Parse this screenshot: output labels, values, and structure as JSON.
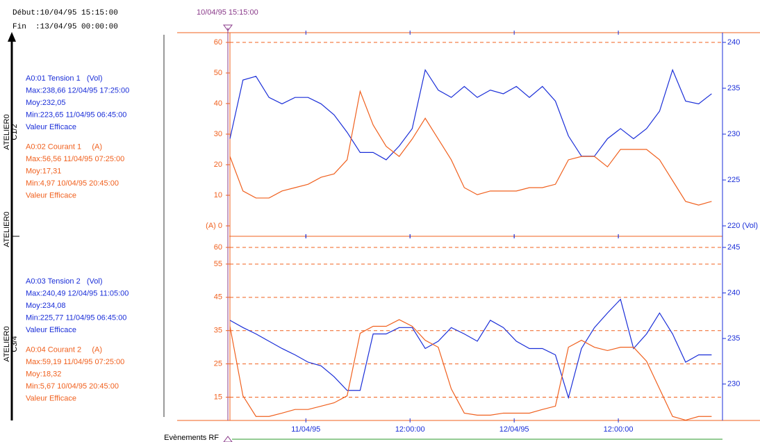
{
  "header": {
    "start": "Début:10/04/95 15:15:00",
    "end": "Fin  :13/04/95 00:00:00",
    "cursor": "10/04/95 15:15:00"
  },
  "groups": [
    {
      "label": "ATELIER0",
      "sublabel": "C1/2"
    },
    {
      "label": "ATELIER0"
    },
    {
      "label": "ATELIER0",
      "sublabel": "C3/4"
    }
  ],
  "footer": "Evènements RF",
  "chart_data": [
    {
      "type": "line",
      "x": [
        0,
        1.5,
        3,
        4.5,
        6,
        7.5,
        9,
        10.5,
        12,
        13.5,
        15,
        16.5,
        18,
        19.5,
        21,
        22.5,
        24,
        25.5,
        27,
        28.5,
        30,
        31.5,
        33,
        34.5,
        36,
        37.5,
        39,
        40.5,
        42,
        43.5,
        45,
        46.5,
        48,
        49.5,
        51,
        52.5,
        54,
        55.5
      ],
      "xlim": [
        0,
        56.75
      ],
      "xticks": [
        8.75,
        20.75,
        32.75,
        44.75
      ],
      "ylim": [
        0,
        60
      ],
      "yticks": [
        {
          "value": 0,
          "label": "(A) 0"
        },
        10,
        20,
        30,
        40,
        50,
        60
      ],
      "y2lim": [
        220,
        240
      ],
      "y2ticks": [
        {
          "value": 220,
          "label": "220 (Vol)"
        },
        225,
        230,
        235,
        240
      ],
      "hlines": [
        60
      ],
      "series": [
        {
          "name": "A0:01 Tension 1   (Vol)",
          "color": "#1a2ed8",
          "axis": "y2",
          "stats": [
            "Max:238,66 12/04/95 17:25:00",
            "Moy:232,05",
            "Min:223,65 11/04/95 06:45:00",
            "Valeur Efficace"
          ],
          "values": [
            229.5,
            235.9,
            236.3,
            234,
            233.3,
            234,
            234,
            233.3,
            232.1,
            230.2,
            228,
            228,
            227.2,
            228.7,
            230.6,
            237,
            234.8,
            234,
            235.2,
            234,
            234.8,
            234.4,
            235.2,
            234,
            235.2,
            233.6,
            229.8,
            227.6,
            227.6,
            229.5,
            230.6,
            229.5,
            230.6,
            232.5,
            237,
            233.6,
            233.3,
            234.4
          ]
        },
        {
          "name": "A0:02 Courant 1     (A)",
          "color": "#f0601e",
          "stats": [
            "Max:56,56 11/04/95 07:25:00",
            "Moy:17,31",
            "Min:4,97 10/04/95 20:45:00",
            "Valeur Efficace"
          ],
          "values": [
            22.7,
            11.4,
            9.1,
            9.1,
            11.4,
            12.5,
            13.6,
            15.9,
            17,
            21.6,
            44,
            33,
            26,
            22.7,
            28.4,
            35.2,
            28.4,
            21.6,
            12.5,
            10.2,
            11.4,
            11.4,
            11.4,
            12.5,
            12.5,
            13.6,
            21.6,
            22.7,
            22.7,
            19.3,
            25,
            25,
            25,
            21.6,
            14.8,
            8,
            6.8,
            8
          ]
        }
      ]
    },
    {
      "type": "line",
      "x": [
        0,
        1.5,
        3,
        4.5,
        6,
        7.5,
        9,
        10.5,
        12,
        13.5,
        15,
        16.5,
        18,
        19.5,
        21,
        22.5,
        24,
        25.5,
        27,
        28.5,
        30,
        31.5,
        33,
        34.5,
        36,
        37.5,
        39,
        40.5,
        42,
        43.5,
        45,
        46.5,
        48,
        49.5,
        51,
        52.5,
        54,
        55.5
      ],
      "xlim": [
        0,
        56.75
      ],
      "xticks": [
        {
          "value": 8.75,
          "label": "11/04/95"
        },
        {
          "value": 20.75,
          "label": "12:00:00"
        },
        {
          "value": 32.75,
          "label": "12/04/95"
        },
        {
          "value": 44.75,
          "label": "12:00:00"
        }
      ],
      "ylim": [
        8,
        60
      ],
      "yticks": [
        15,
        25,
        35,
        45,
        55,
        60
      ],
      "y2lim": [
        226,
        245
      ],
      "y2ticks": [
        230,
        235,
        240,
        245
      ],
      "grid": true,
      "series": [
        {
          "name": "A0:03 Tension 2   (Vol)",
          "color": "#1a2ed8",
          "axis": "y2",
          "stats": [
            "Max:240,49 12/04/95 11:05:00",
            "Moy:234,08",
            "Min:225,77 11/04/95 06:45:00",
            "Valeur Efficace"
          ],
          "values": [
            237,
            236.2,
            235.5,
            234.7,
            233.9,
            233.2,
            232.4,
            232,
            230.8,
            229.3,
            229.3,
            235.5,
            235.5,
            236.2,
            236.2,
            233.9,
            234.7,
            236.2,
            235.5,
            234.7,
            237,
            236.2,
            234.7,
            233.9,
            233.9,
            233.2,
            228.5,
            233.9,
            236.2,
            237.8,
            239.3,
            233.9,
            235.5,
            237.8,
            235.5,
            232.4,
            233.2,
            233.2
          ]
        },
        {
          "name": "A0:04 Courant 2     (A)",
          "color": "#f0601e",
          "stats": [
            "Max:59,19 11/04/95 07:25:00",
            "Moy:18,32",
            "Min:5,67 10/04/95 20:45:00",
            "Valeur Efficace"
          ],
          "values": [
            36.3,
            15.4,
            9.2,
            9.2,
            10.2,
            11.3,
            11.3,
            12.3,
            13.3,
            15.4,
            34.2,
            36.3,
            36.3,
            38.3,
            36.3,
            32.1,
            30,
            17.5,
            10.2,
            9.6,
            9.6,
            10.2,
            10.2,
            10.2,
            11.3,
            12.3,
            30,
            32.1,
            30,
            29,
            30,
            30,
            25.8,
            17.5,
            9.2,
            8.1,
            9.2,
            9.2
          ]
        }
      ]
    }
  ]
}
